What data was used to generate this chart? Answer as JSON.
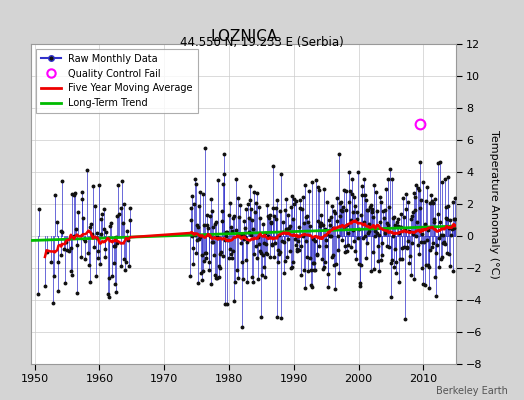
{
  "title": "LOZNICA",
  "subtitle": "44.550 N, 19.233 E (Serbia)",
  "ylabel": "Temperature Anomaly (°C)",
  "credit": "Berkeley Earth",
  "xlim": [
    1949.5,
    2015
  ],
  "ylim": [
    -8,
    12
  ],
  "yticks": [
    -8,
    -6,
    -4,
    -2,
    0,
    2,
    4,
    6,
    8,
    10,
    12
  ],
  "xticks": [
    1950,
    1960,
    1970,
    1980,
    1990,
    2000,
    2010
  ],
  "fig_bg": "#d4d4d4",
  "plot_bg": "#ffffff",
  "raw_line_color": "#3333cc",
  "raw_dot_color": "#111111",
  "moving_avg_color": "#ee0000",
  "trend_color": "#00bb00",
  "qc_color": "#ff00ff",
  "legend_labels": [
    "Raw Monthly Data",
    "Quality Control Fail",
    "Five Year Moving Average",
    "Long-Term Trend"
  ],
  "trend_x": [
    1949.5,
    2015.0
  ],
  "trend_y": [
    -0.28,
    0.62
  ],
  "qc_x": 2009.5,
  "qc_y": 7.0,
  "seed": 7
}
